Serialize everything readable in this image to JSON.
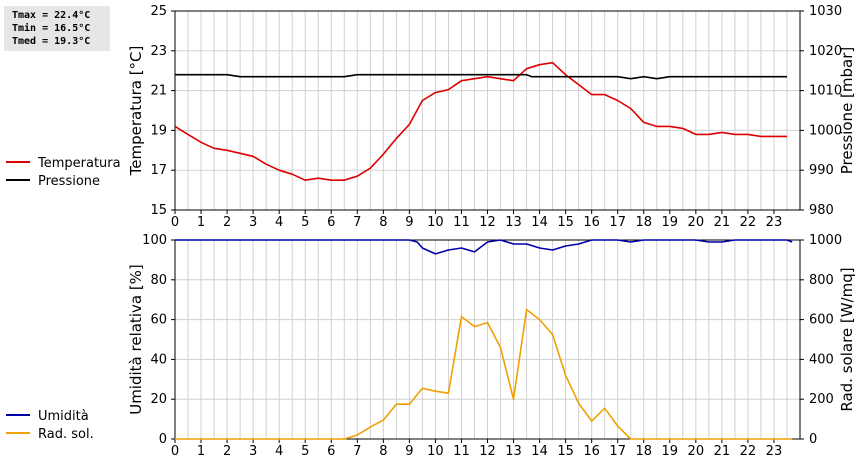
{
  "stats": {
    "tmax": "Tmax = 22.4°C",
    "tmin": "Tmin = 16.5°C",
    "tmed": "Tmed = 19.3°C"
  },
  "colors": {
    "temperature": "#dd0000",
    "pressure": "#000000",
    "humidity": "#0000aa",
    "radiation": "#f0a000",
    "grid": "#d0d0d0"
  },
  "chart_data": [
    {
      "type": "line",
      "x_ticks": [
        "0",
        "1",
        "2",
        "3",
        "4",
        "5",
        "6",
        "7",
        "8",
        "9",
        "10",
        "11",
        "12",
        "13",
        "14",
        "15",
        "16",
        "17",
        "18",
        "19",
        "20",
        "21",
        "22",
        "23"
      ],
      "xlim": [
        0,
        24
      ],
      "ylabel": "Temperatura [°C]",
      "ylim": [
        15,
        25
      ],
      "yticks": [
        "15",
        "17",
        "19",
        "21",
        "23",
        "25"
      ],
      "y2label": "Pressione [mbar]",
      "y2lim": [
        980,
        1030
      ],
      "y2ticks": [
        "980",
        "990",
        "1000",
        "1010",
        "1020",
        "1030"
      ],
      "grid": true,
      "legend_placement": "left",
      "series": [
        {
          "name": "Temperatura",
          "axis": "left",
          "color": "#dd0000",
          "points": [
            [
              0,
              19.2
            ],
            [
              0.25,
              19.0
            ],
            [
              0.5,
              18.8
            ],
            [
              1,
              18.4
            ],
            [
              1.5,
              18.1
            ],
            [
              2,
              18.0
            ],
            [
              2.5,
              17.85
            ],
            [
              3,
              17.7
            ],
            [
              3.5,
              17.3
            ],
            [
              4,
              17.0
            ],
            [
              4.5,
              16.8
            ],
            [
              5,
              16.5
            ],
            [
              5.5,
              16.6
            ],
            [
              6,
              16.5
            ],
            [
              6.5,
              16.5
            ],
            [
              7,
              16.7
            ],
            [
              7.5,
              17.1
            ],
            [
              8,
              17.8
            ],
            [
              8.5,
              18.6
            ],
            [
              9,
              19.3
            ],
            [
              9.5,
              20.5
            ],
            [
              10,
              20.9
            ],
            [
              10.5,
              21.05
            ],
            [
              11,
              21.5
            ],
            [
              11.5,
              21.6
            ],
            [
              12,
              21.7
            ],
            [
              12.5,
              21.6
            ],
            [
              13,
              21.5
            ],
            [
              13.5,
              22.1
            ],
            [
              14,
              22.3
            ],
            [
              14.5,
              22.4
            ],
            [
              15,
              21.8
            ],
            [
              15.5,
              21.3
            ],
            [
              16,
              20.8
            ],
            [
              16.5,
              20.8
            ],
            [
              17,
              20.5
            ],
            [
              17.5,
              20.1
            ],
            [
              18,
              19.4
            ],
            [
              18.5,
              19.2
            ],
            [
              19,
              19.2
            ],
            [
              19.5,
              19.1
            ],
            [
              20,
              18.8
            ],
            [
              20.5,
              18.8
            ],
            [
              21,
              18.9
            ],
            [
              21.5,
              18.8
            ],
            [
              22,
              18.8
            ],
            [
              22.5,
              18.7
            ],
            [
              23,
              18.7
            ],
            [
              23.5,
              18.7
            ]
          ]
        },
        {
          "name": "Pressione",
          "axis": "right",
          "color": "#000000",
          "points": [
            [
              0,
              1014
            ],
            [
              2,
              1014
            ],
            [
              2.5,
              1013.5
            ],
            [
              6.5,
              1013.5
            ],
            [
              7,
              1014
            ],
            [
              13.5,
              1014
            ],
            [
              13.7,
              1013.5
            ],
            [
              17,
              1013.5
            ],
            [
              17.5,
              1013
            ],
            [
              18,
              1013.5
            ],
            [
              18.5,
              1013
            ],
            [
              19,
              1013.5
            ],
            [
              23.5,
              1013.5
            ]
          ]
        }
      ]
    },
    {
      "type": "line",
      "x_ticks": [
        "0",
        "1",
        "2",
        "3",
        "4",
        "5",
        "6",
        "7",
        "8",
        "9",
        "10",
        "11",
        "12",
        "13",
        "14",
        "15",
        "16",
        "17",
        "18",
        "19",
        "20",
        "21",
        "22",
        "23"
      ],
      "xlim": [
        0,
        24
      ],
      "ylabel": "Umidità relativa [%]",
      "ylim": [
        0,
        100
      ],
      "yticks": [
        "0",
        "20",
        "40",
        "60",
        "80",
        "100"
      ],
      "y2label": "Rad. solare [W/mq]",
      "y2lim": [
        0,
        1000
      ],
      "y2ticks": [
        "0",
        "200",
        "400",
        "600",
        "800",
        "1000"
      ],
      "grid": true,
      "legend_placement": "left",
      "series": [
        {
          "name": "Umidità",
          "axis": "left",
          "color": "#0000aa",
          "points": [
            [
              0,
              100
            ],
            [
              9,
              100
            ],
            [
              9.3,
              99
            ],
            [
              9.5,
              96
            ],
            [
              10,
              93
            ],
            [
              10.5,
              95
            ],
            [
              11,
              96
            ],
            [
              11.5,
              94
            ],
            [
              12,
              99
            ],
            [
              12.5,
              100
            ],
            [
              13,
              98
            ],
            [
              13.5,
              98
            ],
            [
              14,
              96
            ],
            [
              14.5,
              95
            ],
            [
              15,
              97
            ],
            [
              15.5,
              98
            ],
            [
              16,
              100
            ],
            [
              17,
              100
            ],
            [
              17.5,
              99
            ],
            [
              18,
              100
            ],
            [
              20,
              100
            ],
            [
              20.5,
              99
            ],
            [
              21,
              99
            ],
            [
              21.5,
              100
            ],
            [
              23.5,
              100
            ],
            [
              23.7,
              99
            ]
          ]
        },
        {
          "name": "Rad. sol.",
          "axis": "right",
          "color": "#f0a000",
          "points": [
            [
              0,
              0
            ],
            [
              6.5,
              0
            ],
            [
              7,
              20
            ],
            [
              7.5,
              60
            ],
            [
              8,
              95
            ],
            [
              8.5,
              175
            ],
            [
              9,
              175
            ],
            [
              9.5,
              255
            ],
            [
              10,
              240
            ],
            [
              10.5,
              230
            ],
            [
              11,
              615
            ],
            [
              11.5,
              565
            ],
            [
              12,
              585
            ],
            [
              12.5,
              460
            ],
            [
              13,
              200
            ],
            [
              13.5,
              650
            ],
            [
              14,
              600
            ],
            [
              14.5,
              525
            ],
            [
              15,
              320
            ],
            [
              15.5,
              180
            ],
            [
              16,
              90
            ],
            [
              16.5,
              155
            ],
            [
              17,
              65
            ],
            [
              17.5,
              0
            ],
            [
              23.7,
              0
            ]
          ]
        }
      ]
    }
  ]
}
